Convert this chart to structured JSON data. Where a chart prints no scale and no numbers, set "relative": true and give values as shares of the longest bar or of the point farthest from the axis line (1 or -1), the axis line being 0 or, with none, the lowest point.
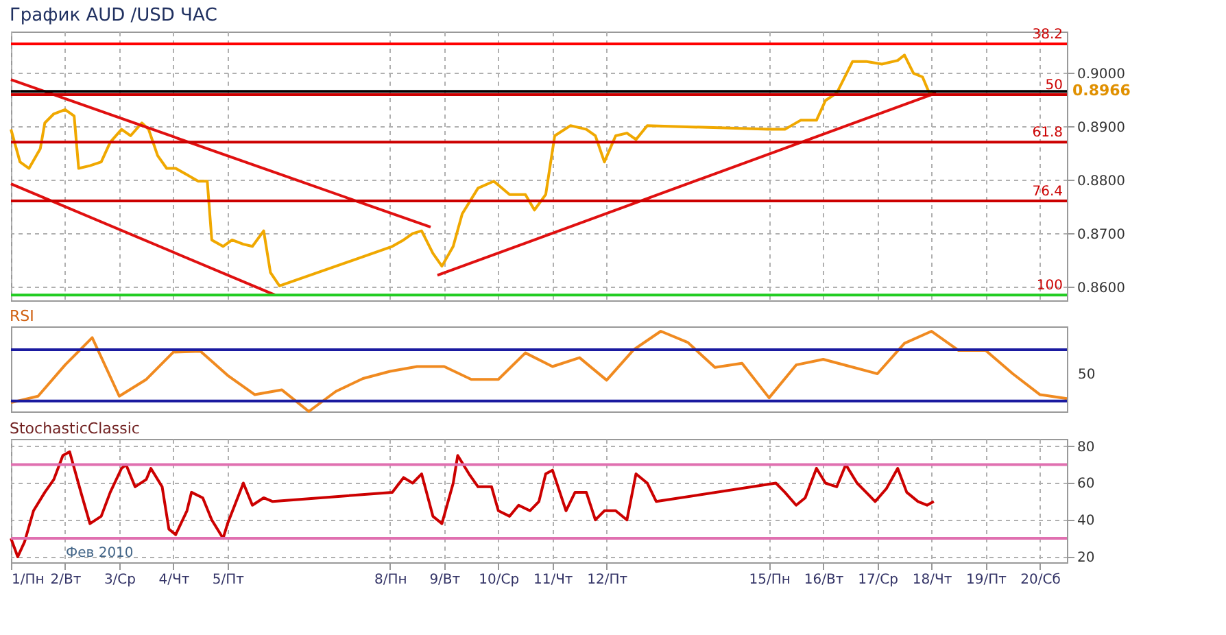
{
  "chart_data": [
    {
      "type": "line",
      "title": "График AUD /USD  ЧАС",
      "xlim": [
        "2010-02-01T00:00",
        "2010-02-20T12:00"
      ],
      "xticks": [
        {
          "value": "2010-02-01",
          "label": null
        },
        {
          "value": "2010-02-02",
          "label": null
        },
        {
          "value": "2010-02-03",
          "label": null
        },
        {
          "value": "2010-02-04",
          "label": null
        },
        {
          "value": "2010-02-05",
          "label": null
        },
        {
          "value": "2010-02-08",
          "label": null
        },
        {
          "value": "2010-02-09",
          "label": null
        },
        {
          "value": "2010-02-10",
          "label": null
        },
        {
          "value": "2010-02-11",
          "label": null
        },
        {
          "value": "2010-02-12",
          "label": null
        },
        {
          "value": "2010-02-15",
          "label": null
        },
        {
          "value": "2010-02-16",
          "label": null
        },
        {
          "value": "2010-02-17",
          "label": null
        },
        {
          "value": "2010-02-18",
          "label": null
        },
        {
          "value": "2010-02-19",
          "label": null
        },
        {
          "value": "2010-02-20",
          "label": null
        }
      ],
      "ylim": [
        0.8575,
        0.9078
      ],
      "yticks": [
        {
          "value": 0.86,
          "label": "0.8600"
        },
        {
          "value": 0.87,
          "label": "0.8700"
        },
        {
          "value": 0.88,
          "label": "0.8800"
        },
        {
          "value": 0.89,
          "label": "0.8900"
        },
        {
          "value": 0.9,
          "label": "0.9000"
        }
      ],
      "grid": true,
      "tick_labels": "y",
      "series": [
        {
          "color": "#f0a800",
          "x": [
            "2010-02-01T00:00",
            "2010-02-01T04:00",
            "2010-02-01T08:00",
            "2010-02-01T13:00",
            "2010-02-01T15:00",
            "2010-02-01T19:00",
            "2010-02-02T00:00",
            "2010-02-02T04:00",
            "2010-02-02T06:00",
            "2010-02-02T11:00",
            "2010-02-02T16:00",
            "2010-02-02T20:00",
            "2010-02-03T01:00",
            "2010-02-03T05:00",
            "2010-02-03T10:00",
            "2010-02-03T13:00",
            "2010-02-03T17:00",
            "2010-02-03T21:00",
            "2010-02-04T01:00",
            "2010-02-04T06:00",
            "2010-02-04T11:00",
            "2010-02-04T15:00",
            "2010-02-04T17:00",
            "2010-02-04T22:00",
            "2010-02-05T02:00",
            "2010-02-05T07:00",
            "2010-02-05T11:00",
            "2010-02-05T16:00",
            "2010-02-05T19:00",
            "2010-02-05T23:00",
            "2010-02-08T01:00",
            "2010-02-08T06:00",
            "2010-02-08T10:00",
            "2010-02-08T14:00",
            "2010-02-08T19:00",
            "2010-02-08T23:00",
            "2010-02-09T04:00",
            "2010-02-09T08:00",
            "2010-02-09T15:00",
            "2010-02-09T22:00",
            "2010-02-10T05:00",
            "2010-02-10T12:00",
            "2010-02-10T16:00",
            "2010-02-10T21:00",
            "2010-02-11T01:00",
            "2010-02-11T08:00",
            "2010-02-11T15:00",
            "2010-02-11T19:00",
            "2010-02-11T23:00",
            "2010-02-12T04:00",
            "2010-02-12T09:00",
            "2010-02-12T13:00",
            "2010-02-12T18:00",
            "2010-02-15T00:00",
            "2010-02-15T07:00",
            "2010-02-15T14:00",
            "2010-02-15T21:00",
            "2010-02-16T01:00",
            "2010-02-16T06:00",
            "2010-02-16T13:00",
            "2010-02-16T19:00",
            "2010-02-17T02:00",
            "2010-02-17T09:00",
            "2010-02-17T12:00",
            "2010-02-17T16:00",
            "2010-02-17T20:00",
            "2010-02-17T23:00",
            "2010-02-18T01:00"
          ],
          "values": [
            0.8895,
            0.8834,
            0.8822,
            0.8859,
            0.8907,
            0.8924,
            0.8932,
            0.892,
            0.8822,
            0.8827,
            0.8834,
            0.8871,
            0.8895,
            0.8883,
            0.8907,
            0.8895,
            0.8846,
            0.8822,
            0.8822,
            0.881,
            0.8798,
            0.8798,
            0.8688,
            0.8676,
            0.8688,
            0.868,
            0.8676,
            0.8705,
            0.8627,
            0.8602,
            0.8676,
            0.8688,
            0.87,
            0.8705,
            0.8663,
            0.8639,
            0.8676,
            0.8737,
            0.8785,
            0.8798,
            0.8773,
            0.8773,
            0.8744,
            0.8773,
            0.8883,
            0.8902,
            0.8895,
            0.8883,
            0.8834,
            0.8883,
            0.8888,
            0.8876,
            0.8902,
            0.8895,
            0.8895,
            0.8912,
            0.8912,
            0.8949,
            0.8963,
            0.9022,
            0.9022,
            0.9017,
            0.9024,
            0.9034,
            0.9,
            0.8993,
            0.8963,
            0.8966
          ]
        },
        {
          "color": "#e01010",
          "x": [
            "2010-02-01T00:00",
            "2010-02-08T18:00"
          ],
          "values": [
            0.8988,
            0.8712
          ]
        },
        {
          "color": "#e01010",
          "x": [
            "2010-02-01T00:00",
            "2010-02-05T21:00"
          ],
          "values": [
            0.8793,
            0.8585
          ]
        },
        {
          "color": "#e01010",
          "x": [
            "2010-02-08T21:00",
            "2010-02-18T02:00"
          ],
          "values": [
            0.8622,
            0.8963
          ]
        }
      ],
      "ref_lines": [
        {
          "axis": "y",
          "value": 0.9055,
          "color": "#ff0000"
        },
        {
          "axis": "y",
          "value": 0.8966,
          "label": "0.8966",
          "color": "#000000"
        },
        {
          "axis": "y",
          "value": 0.896,
          "color": "#cc0000"
        },
        {
          "axis": "y",
          "value": 0.8871,
          "color": "#cc0000"
        },
        {
          "axis": "y",
          "value": 0.8761,
          "color": "#cc0000"
        },
        {
          "axis": "y",
          "value": 0.8585,
          "color": "#22cc22"
        }
      ],
      "annotations": [
        {
          "text": "38.2",
          "y": 0.9055
        },
        {
          "text": "50",
          "y": 0.896
        },
        {
          "text": "61.8",
          "y": 0.8871
        },
        {
          "text": "76.4",
          "y": 0.8761
        },
        {
          "text": "100",
          "y": 0.8585
        }
      ]
    },
    {
      "type": "line",
      "title": "RSI",
      "relative": true,
      "tick_labels": false,
      "categories": [
        null,
        null,
        null,
        null,
        null,
        null,
        null,
        null,
        null,
        null,
        null,
        null,
        null,
        null,
        null,
        null,
        null,
        null,
        null,
        null,
        null,
        null,
        null,
        null,
        null,
        null,
        null,
        null,
        null,
        null,
        null,
        null,
        null,
        null,
        null,
        null,
        null,
        null,
        null,
        null
      ],
      "series": [
        {
          "color": "#f08a20",
          "values": [
            0.11,
            0.19,
            0.58,
            0.92,
            0.19,
            0.4,
            0.74,
            0.75,
            0.45,
            0.21,
            0.27,
            0,
            0.25,
            0.41,
            0.5,
            0.56,
            0.56,
            0.4,
            0.4,
            0.73,
            0.56,
            0.67,
            0.39,
            0.77,
            1,
            0.86,
            0.55,
            0.6,
            0.17,
            0.58,
            0.65,
            0.56,
            0.47,
            0.85,
            1,
            0.76,
            0.76,
            0.47,
            0.21,
            0.16
          ]
        }
      ],
      "ref_lines": [
        {
          "axis": "y",
          "value": 0.77,
          "color": "#1a1aa0"
        },
        {
          "axis": "y",
          "value": 0.13,
          "color": "#1a1aa0"
        }
      ],
      "annotations": [
        "50"
      ]
    },
    {
      "type": "line",
      "title": "StochasticClassic",
      "xlim": [
        "2010-02-01T00:00",
        "2010-02-20T12:00"
      ],
      "xticks": [
        {
          "value": "2010-02-01",
          "label": "1/Пн"
        },
        {
          "value": "2010-02-02",
          "label": "2/Вт"
        },
        {
          "value": "2010-02-03",
          "label": "3/Ср"
        },
        {
          "value": "2010-02-04",
          "label": "4/Чт"
        },
        {
          "value": "2010-02-05",
          "label": "5/Пт"
        },
        {
          "value": "2010-02-08",
          "label": "8/Пн"
        },
        {
          "value": "2010-02-09",
          "label": "9/Вт"
        },
        {
          "value": "2010-02-10",
          "label": "10/Ср"
        },
        {
          "value": "2010-02-11",
          "label": "11/Чт"
        },
        {
          "value": "2010-02-12",
          "label": "12/Пт"
        },
        {
          "value": "2010-02-15",
          "label": "15/Пн"
        },
        {
          "value": "2010-02-16",
          "label": "16/Вт"
        },
        {
          "value": "2010-02-17",
          "label": "17/Ср"
        },
        {
          "value": "2010-02-18",
          "label": "18/Чт"
        },
        {
          "value": "2010-02-19",
          "label": "19/Пт"
        },
        {
          "value": "2010-02-20",
          "label": "20/Сб"
        }
      ],
      "ylim": [
        17,
        84
      ],
      "yticks": [
        20,
        40,
        60,
        80
      ],
      "grid": true,
      "series": [
        {
          "color": "#cc0000",
          "x": [
            "2010-02-01T00:00",
            "2010-02-01T03:00",
            "2010-02-01T06:00",
            "2010-02-01T10:00",
            "2010-02-01T15:00",
            "2010-02-01T19:00",
            "2010-02-01T23:00",
            "2010-02-02T02:00",
            "2010-02-02T07:00",
            "2010-02-02T11:00",
            "2010-02-02T16:00",
            "2010-02-02T20:00",
            "2010-02-03T01:00",
            "2010-02-03T03:00",
            "2010-02-03T07:00",
            "2010-02-03T12:00",
            "2010-02-03T14:00",
            "2010-02-03T19:00",
            "2010-02-03T22:00",
            "2010-02-04T01:00",
            "2010-02-04T06:00",
            "2010-02-04T08:00",
            "2010-02-04T13:00",
            "2010-02-04T17:00",
            "2010-02-04T22:00",
            "2010-02-05T00:00",
            "2010-02-05T07:00",
            "2010-02-05T11:00",
            "2010-02-05T16:00",
            "2010-02-05T20:00",
            "2010-02-08T01:00",
            "2010-02-08T06:00",
            "2010-02-08T10:00",
            "2010-02-08T14:00",
            "2010-02-08T19:00",
            "2010-02-08T23:00",
            "2010-02-09T04:00",
            "2010-02-09T06:00",
            "2010-02-09T11:00",
            "2010-02-09T15:00",
            "2010-02-09T21:00",
            "2010-02-10T00:00",
            "2010-02-10T05:00",
            "2010-02-10T09:00",
            "2010-02-10T14:00",
            "2010-02-10T18:00",
            "2010-02-10T21:00",
            "2010-02-11T00:00",
            "2010-02-11T06:00",
            "2010-02-11T10:00",
            "2010-02-11T15:00",
            "2010-02-11T19:00",
            "2010-02-11T23:00",
            "2010-02-12T04:00",
            "2010-02-12T09:00",
            "2010-02-12T13:00",
            "2010-02-12T18:00",
            "2010-02-12T22:00",
            "2010-02-15T03:00",
            "2010-02-15T07:00",
            "2010-02-15T12:00",
            "2010-02-15T16:00",
            "2010-02-15T21:00",
            "2010-02-16T01:00",
            "2010-02-16T06:00",
            "2010-02-16T10:00",
            "2010-02-16T15:00",
            "2010-02-16T19:00",
            "2010-02-16T23:00",
            "2010-02-17T04:00",
            "2010-02-17T09:00",
            "2010-02-17T13:00",
            "2010-02-17T18:00",
            "2010-02-17T22:00",
            "2010-02-18T01:00"
          ],
          "values": [
            30,
            20,
            28,
            45,
            55,
            62,
            75,
            77,
            55,
            38,
            42,
            55,
            68,
            70,
            58,
            62,
            68,
            58,
            35,
            32,
            45,
            55,
            52,
            40,
            30,
            38,
            60,
            48,
            52,
            50,
            55,
            63,
            60,
            65,
            42,
            38,
            60,
            75,
            65,
            58,
            58,
            45,
            42,
            48,
            45,
            50,
            65,
            67,
            45,
            55,
            55,
            40,
            45,
            45,
            40,
            65,
            60,
            50,
            60,
            55,
            48,
            52,
            68,
            60,
            58,
            70,
            60,
            55,
            50,
            57,
            68,
            55,
            50,
            48,
            50
          ]
        }
      ],
      "ref_lines": [
        {
          "axis": "y",
          "value": 70,
          "color": "#e070b0"
        },
        {
          "axis": "y",
          "value": 30,
          "color": "#e070b0"
        }
      ],
      "annotations": [
        "Фев 2010"
      ]
    }
  ]
}
